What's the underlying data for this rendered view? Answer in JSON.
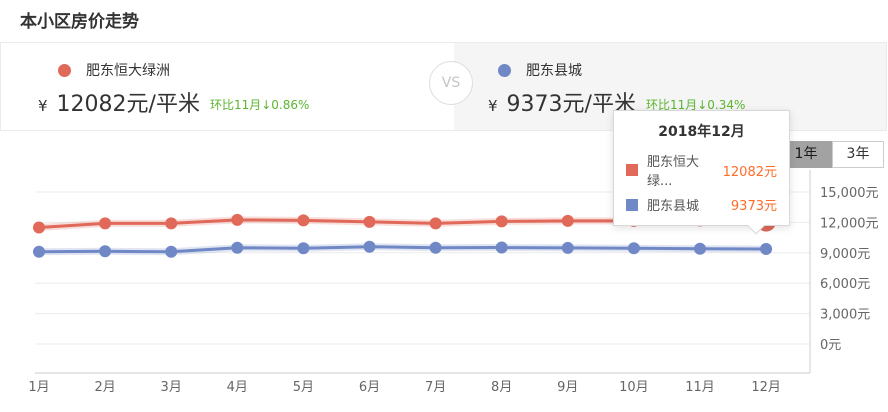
{
  "page": {
    "title": "本小区房价走势"
  },
  "comparison": {
    "left": {
      "name": "肥东恒大绿洲",
      "currency": "¥",
      "price_text": "12082元/平米",
      "mom": "环比11月↓0.86%",
      "color": "#e0695a"
    },
    "vs": "VS",
    "right": {
      "name": "肥东县城",
      "currency": "¥",
      "price_text": "9373元/平米",
      "mom": "环比11月↓0.34%",
      "color": "#7188c6"
    }
  },
  "range_tabs": [
    {
      "label": "1年",
      "selected": true
    },
    {
      "label": "3年",
      "selected": false
    }
  ],
  "tooltip": {
    "title": "2018年12月",
    "rows": [
      {
        "name": "肥东恒大绿...",
        "value": "12082元",
        "color": "#e0695a"
      },
      {
        "name": "肥东县城",
        "value": "9373元",
        "color": "#7188c6"
      }
    ]
  },
  "colors": {
    "series_red": "#e0695a",
    "series_blue": "#7188c6",
    "mom_green": "#5cb531",
    "tooltip_value_orange": "#ff6d28",
    "selected_tab_bg": "#a2a2a2"
  },
  "chart_data": {
    "type": "line",
    "title": "本小区房价走势",
    "categories": [
      "1月",
      "2月",
      "3月",
      "4月",
      "5月",
      "6月",
      "7月",
      "8月",
      "9月",
      "10月",
      "11月",
      "12月"
    ],
    "series": [
      {
        "name": "肥东恒大绿洲",
        "color": "#e0695a",
        "values": [
          11500,
          11900,
          11900,
          12250,
          12200,
          12050,
          11900,
          12100,
          12150,
          12150,
          12187,
          12082
        ],
        "highlight_index": 11
      },
      {
        "name": "肥东县城",
        "color": "#7188c6",
        "values": [
          9100,
          9150,
          9100,
          9500,
          9450,
          9600,
          9500,
          9520,
          9480,
          9450,
          9405,
          9373
        ]
      }
    ],
    "y_ticks": [
      {
        "value": 15000,
        "label": "15,000元"
      },
      {
        "value": 12000,
        "label": "12,000元"
      },
      {
        "value": 9000,
        "label": "9,000元"
      },
      {
        "value": 6000,
        "label": "6,000元"
      },
      {
        "value": 3000,
        "label": "3,000元"
      },
      {
        "value": 0,
        "label": "0元"
      }
    ],
    "ylim": [
      0,
      15000
    ],
    "grid": "horizontal",
    "y_axis_position": "right",
    "legend_position": "none",
    "hover_point": {
      "category": "2018年12月",
      "values": [
        "12082元",
        "9373元"
      ]
    }
  }
}
